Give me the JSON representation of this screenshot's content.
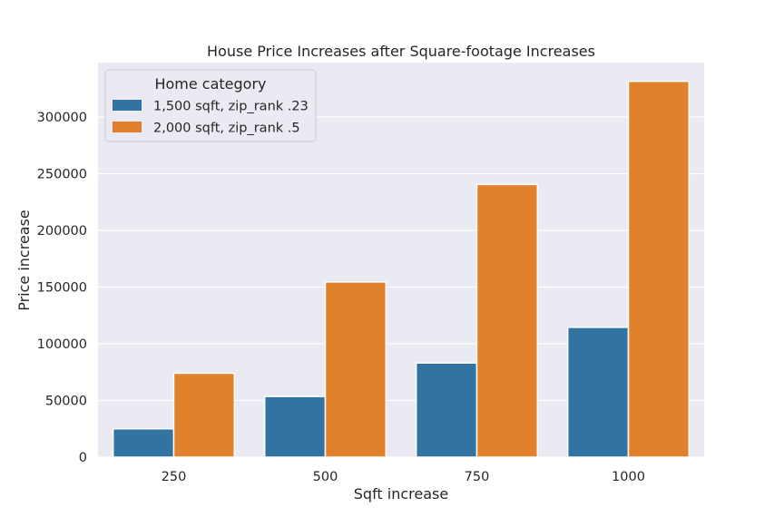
{
  "chart_data": {
    "type": "bar",
    "title": "House Price Increases after Square-footage Increases",
    "xlabel": "Sqft increase",
    "ylabel": "Price increase",
    "categories": [
      "250",
      "500",
      "750",
      "1000"
    ],
    "series": [
      {
        "name": "1,500 sqft, zip_rank .23",
        "color": "#3274a1",
        "values": [
          25000,
          53500,
          83000,
          114500
        ]
      },
      {
        "name": "2,000 sqft, zip_rank .5",
        "color": "#e1812c",
        "values": [
          74000,
          154500,
          240500,
          331500
        ]
      }
    ],
    "ylim": [
      0,
      348000
    ],
    "yticks": [
      0,
      50000,
      100000,
      150000,
      200000,
      250000,
      300000
    ],
    "grid": true,
    "legend": {
      "title": "Home category",
      "placement": "top-left"
    },
    "colors": {
      "background": "#eaeaf2",
      "grid": "#ffffff"
    }
  }
}
